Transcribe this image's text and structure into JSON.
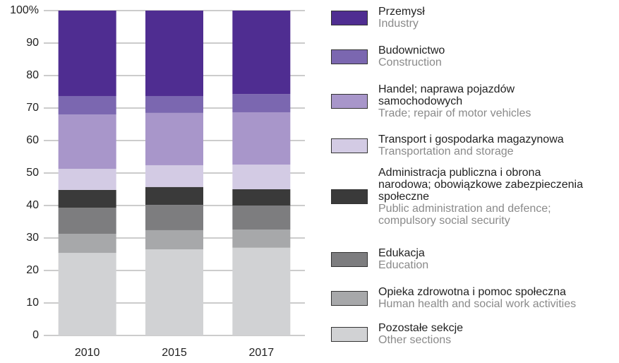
{
  "chart_data": {
    "type": "stacked_bar",
    "categories": [
      "2010",
      "2015",
      "2017"
    ],
    "ylim": [
      0,
      100
    ],
    "yticks": [
      0,
      10,
      20,
      30,
      40,
      50,
      60,
      70,
      80,
      90,
      {
        "value": 100,
        "label": "100%"
      }
    ],
    "grid": true,
    "legend": "right",
    "series": [
      {
        "name": "Przemysł",
        "name_en": "Industry",
        "color": "#4f2d91",
        "values": [
          26.3,
          26.3,
          25.7
        ]
      },
      {
        "name": "Budownictwo",
        "name_en": "Construction",
        "color": "#7b67b0",
        "values": [
          5.7,
          5.2,
          5.6
        ]
      },
      {
        "name": "Handel; naprawa pojazdów\n samochodowych",
        "name_en": "Trade; repair of motor vehicles",
        "color": "#a896ca",
        "values": [
          16.7,
          16.1,
          16.1
        ]
      },
      {
        "name": "Transport i gospodarka magazynowa",
        "name_en": "Transportation and storage",
        "color": "#d3cbe4",
        "values": [
          6.5,
          6.7,
          7.6
        ]
      },
      {
        "name": "Administracja publiczna i obrona\nnarodowa; obowiązkowe zabezpieczenia\nspołeczne",
        "name_en": "Public administration and defence;\ncompulsory social security",
        "color": "#3a3a3a",
        "values": [
          5.5,
          5.5,
          5.0
        ]
      },
      {
        "name": "Edukacja",
        "name_en": "Education",
        "color": "#7d7d7f",
        "values": [
          8.0,
          7.8,
          7.4
        ]
      },
      {
        "name": "Opieka zdrowotna i pomoc społeczna",
        "name_en": "Human health and social work activities",
        "color": "#a7a8aa",
        "values": [
          5.9,
          5.9,
          5.6
        ]
      },
      {
        "name": "Pozostałe sekcje",
        "name_en": "Other sections",
        "color": "#d1d2d4",
        "values": [
          25.4,
          26.5,
          27.0
        ]
      }
    ]
  }
}
